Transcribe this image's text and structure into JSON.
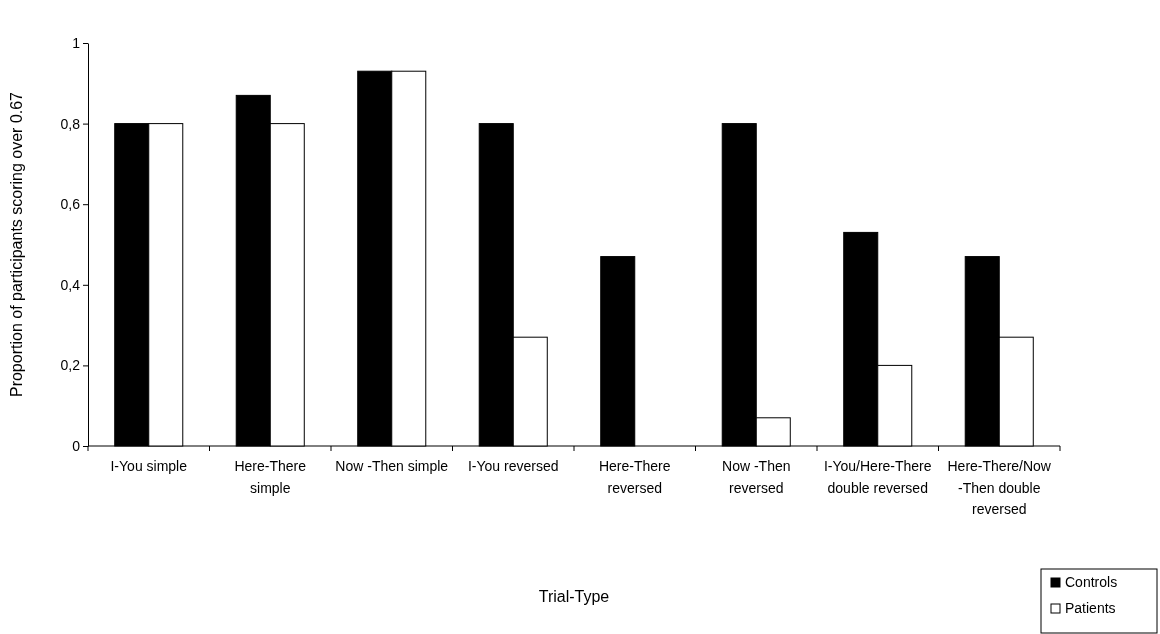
{
  "chart_data": {
    "type": "bar",
    "xlabel": "Trial-Type",
    "ylabel": "Proportion of participants scoring over 0.67",
    "categories": [
      "I-You simple",
      "Here-There simple",
      "Now -Then simple",
      "I-You reversed",
      "Here-There reversed",
      "Now -Then reversed",
      "I-You/Here-There double reversed",
      "Here-There/Now -Then double reversed"
    ],
    "series": [
      {
        "name": "Controls",
        "color": "#000000",
        "values": [
          0.8,
          0.87,
          0.93,
          0.8,
          0.47,
          0.8,
          0.53,
          0.47
        ]
      },
      {
        "name": "Patients",
        "color": "#ffffff",
        "values": [
          0.8,
          0.8,
          0.93,
          0.27,
          0,
          0.07,
          0.2,
          0.27
        ]
      }
    ],
    "ylim": [
      0,
      1
    ],
    "yticks": [
      0,
      {
        "value": 0.2,
        "label": "0,2"
      },
      {
        "value": 0.4,
        "label": "0,4"
      },
      {
        "value": 0.6,
        "label": "0,6"
      },
      {
        "value": 0.8,
        "label": "0,8"
      },
      1
    ],
    "grid": false,
    "legend": "bottom right"
  }
}
